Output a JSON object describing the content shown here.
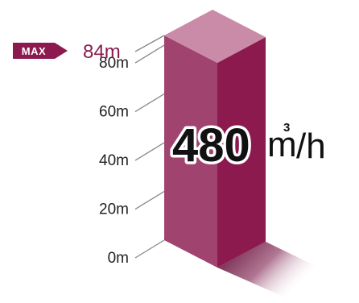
{
  "chart_data": {
    "type": "bar",
    "unit": "m",
    "ylim": [
      0,
      84
    ],
    "ticks": [
      {
        "value": 0,
        "label": "0m"
      },
      {
        "value": 20,
        "label": "20m"
      },
      {
        "value": 40,
        "label": "40m"
      },
      {
        "value": 60,
        "label": "60m"
      },
      {
        "value": 80,
        "label": "80m"
      }
    ],
    "max": {
      "badge": "MAX",
      "value": 84,
      "label": "84m"
    },
    "bar": {
      "value": 84
    },
    "annotation": {
      "value": "480",
      "unit": "m",
      "superscript": "3",
      "per": "/h"
    }
  },
  "colors": {
    "front": "#a0446f",
    "side": "#8c1a4f",
    "top": "#c98ba8",
    "max": "#8c1a4f",
    "badge": "#8c1a4f",
    "tick_text": "#222222",
    "leader": "#888888",
    "shadow": "#5a0a30"
  }
}
